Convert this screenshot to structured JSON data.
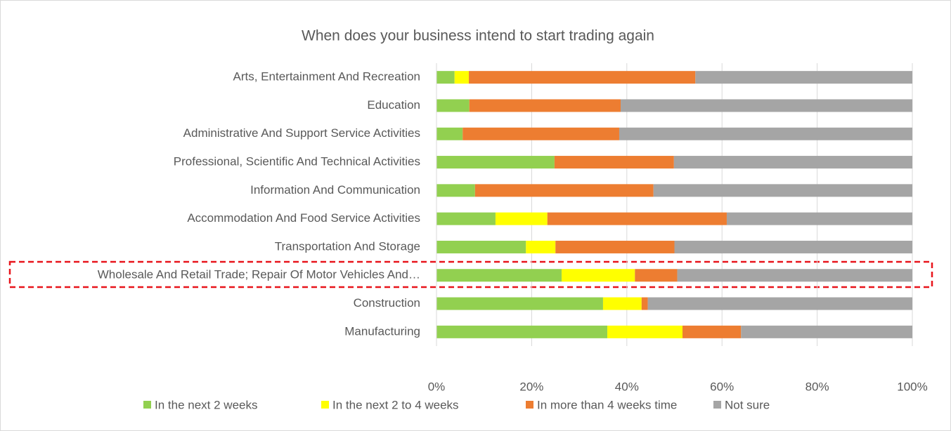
{
  "chart_data": {
    "type": "stacked_bar_horizontal",
    "title": "When does your business intend to start trading again",
    "categories": [
      "Arts, Entertainment And Recreation",
      "Education",
      "Administrative And Support Service Activities",
      "Professional, Scientific And Technical Activities",
      "Information And Communication",
      "Accommodation And Food Service Activities",
      "Transportation And Storage",
      "Wholesale And Retail Trade; Repair Of Motor Vehicles And…",
      "Construction",
      "Manufacturing"
    ],
    "series": [
      {
        "name": "In the next 2 weeks",
        "color": "#92d050",
        "values": [
          3.8,
          6.9,
          5.5,
          24.8,
          8.1,
          12.4,
          18.8,
          26.3,
          35.0,
          35.9
        ]
      },
      {
        "name": "In the next 2 to 4 weeks",
        "color": "#ffff00",
        "values": [
          3.0,
          0,
          0,
          0,
          0,
          10.9,
          6.2,
          15.4,
          8.1,
          15.8
        ]
      },
      {
        "name": "In more than 4 weeks time",
        "color": "#ed7d31",
        "values": [
          47.6,
          31.8,
          32.9,
          25.1,
          37.5,
          37.7,
          25.0,
          8.9,
          1.3,
          12.3
        ]
      },
      {
        "name": "Not sure",
        "color": "#a5a5a5",
        "values": [
          45.6,
          61.3,
          61.6,
          50.1,
          54.4,
          39.0,
          50.0,
          49.4,
          55.6,
          36.0
        ]
      }
    ],
    "xlim": [
      0,
      100
    ],
    "xticks": [
      {
        "value": 0,
        "label": "0%"
      },
      {
        "value": 20,
        "label": "20%"
      },
      {
        "value": 40,
        "label": "40%"
      },
      {
        "value": 60,
        "label": "60%"
      },
      {
        "value": 80,
        "label": "80%"
      },
      {
        "value": 100,
        "label": "100%"
      }
    ],
    "grid": true,
    "legend": "bottom"
  }
}
